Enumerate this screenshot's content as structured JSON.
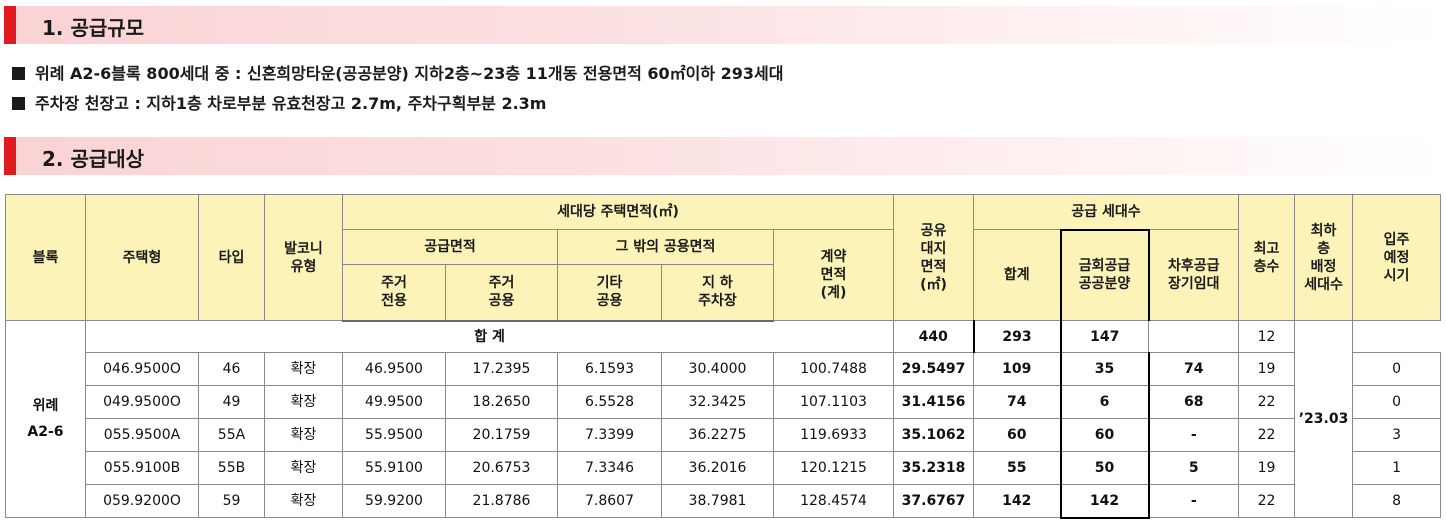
{
  "section1": {
    "title": "1. 공급규모"
  },
  "bullets": [
    "위례 A2-6블록 800세대 중 : 신혼희망타운(공공분양) 지하2층~23층 11개동 전용면적 60㎡이하 293세대",
    "주차장 천장고 : 지하1층 차로부분 유효천장고 2.7m, 주차구획부분 2.3m"
  ],
  "section2": {
    "title": "2. 공급대상"
  },
  "table": {
    "headers": {
      "block": "블록",
      "housing_type": "주택형",
      "type": "타입",
      "balcony": "발코니\n유형",
      "area_per_unit": "세대당 주택면적(㎡)",
      "supply_area": "공급면적",
      "other_common": "그 밖의 공용면적",
      "contract_area": "계약\n면적\n(계)",
      "exclusive": "주거\n전용",
      "common": "주거\n공용",
      "other": "기타\n공용",
      "parking": "지  하\n주차장",
      "land_share": "공유\n대지\n면적\n(㎡)",
      "supply_units": "공급 세대수",
      "total": "합계",
      "current_supply": "금회공급\n공공분양",
      "later_supply": "차후공급\n장기임대",
      "max_floor": "최고\n층수",
      "lowest_floor": "최하\n층\n배정\n세대수",
      "move_in": "입주\n예정\n시기"
    },
    "block_name": "위례\nA2-6",
    "move_in_date": "’23.03",
    "summary": {
      "label": "합 계",
      "total": "440",
      "current": "293",
      "later": "147",
      "max_floor": "",
      "lowest": "12"
    },
    "rows": [
      [
        "046.9500O",
        "46",
        "확장",
        "46.9500",
        "17.2395",
        "6.1593",
        "30.4000",
        "100.7488",
        "29.5497",
        "109",
        "35",
        "74",
        "19",
        "0"
      ],
      [
        "049.9500O",
        "49",
        "확장",
        "49.9500",
        "18.2650",
        "6.5528",
        "32.3425",
        "107.1103",
        "31.4156",
        "74",
        "6",
        "68",
        "22",
        "0"
      ],
      [
        "055.9500A",
        "55A",
        "확장",
        "55.9500",
        "20.1759",
        "7.3399",
        "36.2275",
        "119.6933",
        "35.1062",
        "60",
        "60",
        "-",
        "22",
        "3"
      ],
      [
        "055.9100B",
        "55B",
        "확장",
        "55.9100",
        "20.6753",
        "7.3346",
        "36.2016",
        "120.1215",
        "35.2318",
        "55",
        "50",
        "5",
        "19",
        "1"
      ],
      [
        "059.9200O",
        "59",
        "확장",
        "59.9200",
        "21.8786",
        "7.8607",
        "38.7981",
        "128.4574",
        "37.6767",
        "142",
        "142",
        "-",
        "22",
        "8"
      ]
    ]
  }
}
